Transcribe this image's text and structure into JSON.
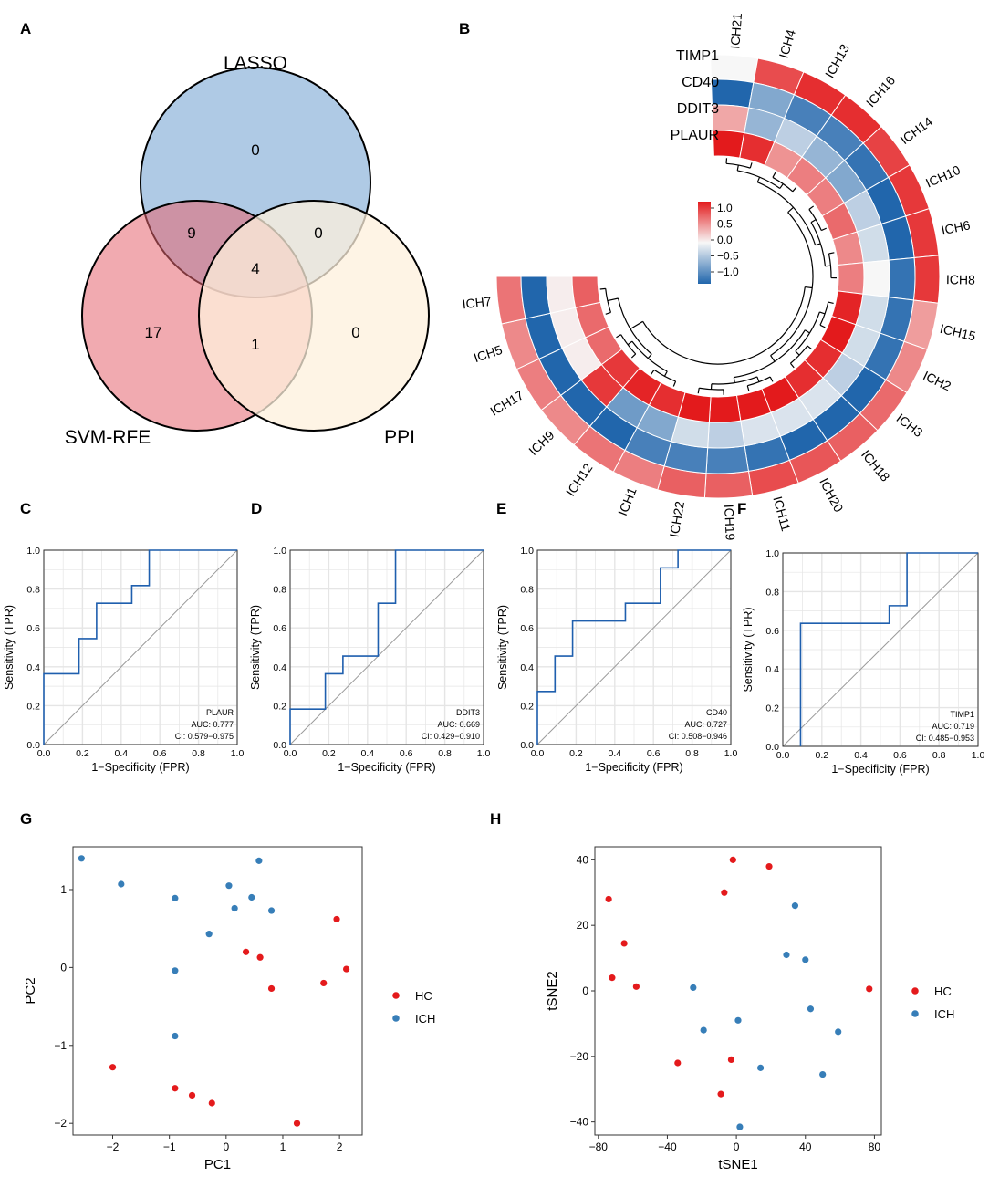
{
  "panel_letters": [
    "A",
    "B",
    "C",
    "D",
    "E",
    "F",
    "G",
    "H"
  ],
  "chart_data": [
    {
      "panel": "A",
      "type": "venn",
      "sets": [
        "LASSO",
        "SVM-RFE",
        "PPI"
      ],
      "set_colors": [
        "#6e9fcf",
        "#e6646f",
        "#fdf0dc"
      ],
      "regions": {
        "LASSO_only": "0",
        "LASSO_SVM": "9",
        "LASSO_PPI": "0",
        "all_three": "4",
        "SVM_only": "17",
        "SVM_PPI": "1",
        "PPI_only": "0"
      }
    },
    {
      "panel": "B",
      "type": "heatmap",
      "layout": "circular",
      "genes": [
        "TIMP1",
        "CD40",
        "DDIT3",
        "PLAUR"
      ],
      "samples": [
        "ICH21",
        "ICH4",
        "ICH13",
        "ICH16",
        "ICH14",
        "ICH10",
        "ICH6",
        "ICH8",
        "ICH15",
        "ICH2",
        "ICH3",
        "ICH18",
        "ICH20",
        "ICH11",
        "ICH19",
        "ICH22",
        "ICH1",
        "ICH12",
        "ICH9",
        "ICH17",
        "ICH5",
        "ICH7"
      ],
      "values": [
        [
          0.0,
          0.85,
          1.0,
          1.0,
          0.9,
          0.95,
          0.95,
          0.95,
          0.45,
          0.55,
          0.7,
          0.75,
          0.8,
          0.85,
          0.75,
          0.75,
          0.6,
          0.65,
          0.55,
          0.6,
          0.55,
          0.65
        ],
        [
          -1.2,
          -0.6,
          -0.9,
          -0.9,
          -1.0,
          -1.1,
          -1.1,
          -1.0,
          -1.0,
          -1.0,
          -1.1,
          -1.1,
          -1.1,
          -1.0,
          -0.9,
          -0.9,
          -0.9,
          -1.1,
          -1.1,
          -1.1,
          -1.1,
          -1.1
        ],
        [
          0.4,
          -0.5,
          -0.3,
          -0.5,
          -0.6,
          -0.3,
          -0.2,
          0.0,
          -0.2,
          -0.2,
          -0.3,
          -0.15,
          -0.15,
          -0.15,
          -0.3,
          -0.2,
          -0.6,
          -0.7,
          0.95,
          0.05,
          0.05,
          0.05
        ],
        [
          1.1,
          1.0,
          0.5,
          0.6,
          0.6,
          0.7,
          0.55,
          0.6,
          1.05,
          1.1,
          1.0,
          1.0,
          1.1,
          1.1,
          1.1,
          1.1,
          1.0,
          1.05,
          0.95,
          0.7,
          0.7,
          0.75
        ]
      ],
      "legend": {
        "ticks": [
          "1.0",
          "0.5",
          "0.0",
          "−0.5",
          "−1.0"
        ],
        "range": [
          -1.2,
          1.2
        ]
      },
      "colors": {
        "low": "#2166ac",
        "mid": "#f7f7f7",
        "high": "#e31a1c"
      }
    },
    {
      "panel": "C",
      "type": "line",
      "subtype": "roc",
      "gene": "PLAUR",
      "auc": "AUC: 0.777",
      "ci": "CI: 0.579−0.975",
      "x": [
        0,
        0,
        0.182,
        0.182,
        0.273,
        0.273,
        0.455,
        0.455,
        0.545,
        0.545,
        1
      ],
      "y": [
        0,
        0.364,
        0.364,
        0.545,
        0.545,
        0.727,
        0.727,
        0.818,
        0.818,
        1,
        1
      ],
      "xlabel": "1−Specificity (FPR)",
      "ylabel": "Sensitivity (TPR)",
      "xlim": [
        0,
        1
      ],
      "ylim": [
        0,
        1
      ],
      "ticks": [
        "0.0",
        "0.2",
        "0.4",
        "0.6",
        "0.8",
        "1.0"
      ]
    },
    {
      "panel": "D",
      "type": "line",
      "subtype": "roc",
      "gene": "DDIT3",
      "auc": "AUC: 0.669",
      "ci": "CI: 0.429−0.910",
      "x": [
        0,
        0,
        0.182,
        0.182,
        0.273,
        0.273,
        0.455,
        0.455,
        0.545,
        0.545,
        1
      ],
      "y": [
        0,
        0.182,
        0.182,
        0.364,
        0.364,
        0.455,
        0.455,
        0.727,
        0.727,
        1,
        1
      ],
      "xlabel": "1−Specificity (FPR)",
      "ylabel": "Sensitivity (TPR)",
      "xlim": [
        0,
        1
      ],
      "ylim": [
        0,
        1
      ],
      "ticks": [
        "0.0",
        "0.2",
        "0.4",
        "0.6",
        "0.8",
        "1.0"
      ]
    },
    {
      "panel": "E",
      "type": "line",
      "subtype": "roc",
      "gene": "CD40",
      "auc": "AUC: 0.727",
      "ci": "CI: 0.508−0.946",
      "x": [
        0,
        0,
        0.091,
        0.091,
        0.182,
        0.182,
        0.455,
        0.455,
        0.636,
        0.636,
        0.727,
        0.727,
        1
      ],
      "y": [
        0,
        0.273,
        0.273,
        0.455,
        0.455,
        0.636,
        0.636,
        0.727,
        0.727,
        0.909,
        0.909,
        1,
        1
      ],
      "xlabel": "1−Specificity (FPR)",
      "ylabel": "Sensitivity (TPR)",
      "xlim": [
        0,
        1
      ],
      "ylim": [
        0,
        1
      ],
      "ticks": [
        "0.0",
        "0.2",
        "0.4",
        "0.6",
        "0.8",
        "1.0"
      ]
    },
    {
      "panel": "F",
      "type": "line",
      "subtype": "roc",
      "gene": "TIMP1",
      "auc": "AUC: 0.719",
      "ci": "CI: 0.485−0.953",
      "x": [
        0.091,
        0.091,
        0.545,
        0.545,
        0.636,
        0.636,
        1
      ],
      "y": [
        0,
        0.636,
        0.636,
        0.727,
        0.727,
        1,
        1
      ],
      "xlabel": "1−Specificity (FPR)",
      "ylabel": "Sensitivity (TPR)",
      "xlim": [
        0,
        1
      ],
      "ylim": [
        0,
        1
      ],
      "ticks": [
        "0.0",
        "0.2",
        "0.4",
        "0.6",
        "0.8",
        "1.0"
      ]
    },
    {
      "panel": "G",
      "type": "scatter",
      "xlabel": "PC1",
      "ylabel": "PC2",
      "xlim": [
        -2.7,
        2.4
      ],
      "ylim": [
        -2.15,
        1.55
      ],
      "xticks": [
        -2,
        -1,
        0,
        1,
        2
      ],
      "yticks": [
        -2,
        -1,
        0,
        1
      ],
      "series": [
        {
          "name": "HC",
          "color": "#e41a1c",
          "points": [
            [
              0.35,
              0.2
            ],
            [
              0.6,
              0.13
            ],
            [
              0.8,
              -0.27
            ],
            [
              1.72,
              -0.2
            ],
            [
              1.95,
              0.62
            ],
            [
              2.12,
              -0.02
            ],
            [
              -2.0,
              -1.28
            ],
            [
              -0.9,
              -1.55
            ],
            [
              -0.6,
              -1.64
            ],
            [
              -0.25,
              -1.74
            ],
            [
              1.25,
              -2.0
            ]
          ]
        },
        {
          "name": "ICH",
          "color": "#377eb8",
          "points": [
            [
              -2.55,
              1.4
            ],
            [
              -1.85,
              1.07
            ],
            [
              -0.9,
              0.89
            ],
            [
              0.05,
              1.05
            ],
            [
              0.58,
              1.37
            ],
            [
              0.45,
              0.9
            ],
            [
              0.15,
              0.76
            ],
            [
              0.8,
              0.73
            ],
            [
              -0.3,
              0.43
            ],
            [
              -0.9,
              -0.04
            ],
            [
              -0.9,
              -0.88
            ]
          ]
        }
      ]
    },
    {
      "panel": "H",
      "type": "scatter",
      "xlabel": "tSNE1",
      "ylabel": "tSNE2",
      "xlim": [
        -82,
        84
      ],
      "ylim": [
        -44,
        44
      ],
      "xticks": [
        -80,
        -40,
        0,
        40,
        80
      ],
      "yticks": [
        -40,
        -20,
        0,
        20,
        40
      ],
      "series": [
        {
          "name": "HC",
          "color": "#e41a1c",
          "points": [
            [
              -2,
              40
            ],
            [
              19,
              38
            ],
            [
              -7,
              30
            ],
            [
              -74,
              28
            ],
            [
              -65,
              14.5
            ],
            [
              -72,
              4
            ],
            [
              -58,
              1.3
            ],
            [
              77,
              0.6
            ],
            [
              -34,
              -22
            ],
            [
              -3,
              -21
            ],
            [
              -9,
              -31.5
            ]
          ]
        },
        {
          "name": "ICH",
          "color": "#377eb8",
          "points": [
            [
              34,
              26
            ],
            [
              29,
              11
            ],
            [
              40,
              9.5
            ],
            [
              -25,
              1
            ],
            [
              43,
              -5.5
            ],
            [
              1,
              -9
            ],
            [
              -19,
              -12
            ],
            [
              59,
              -12.5
            ],
            [
              14,
              -23.5
            ],
            [
              50,
              -25.5
            ],
            [
              2,
              -41.5
            ]
          ]
        }
      ]
    }
  ]
}
